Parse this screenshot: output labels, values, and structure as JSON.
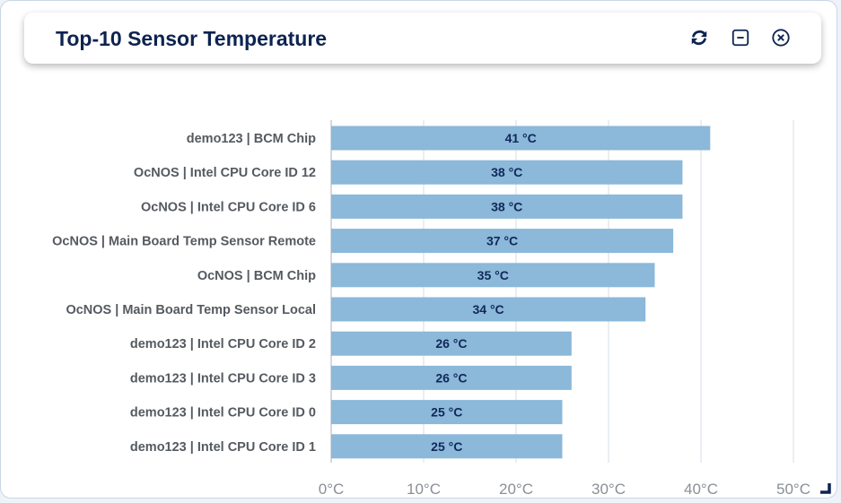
{
  "widget": {
    "title": "Top-10 Sensor Temperature",
    "actions": [
      {
        "name": "refresh",
        "icon": "refresh-icon"
      },
      {
        "name": "minimize",
        "icon": "minimize-icon"
      },
      {
        "name": "close",
        "icon": "close-icon"
      }
    ]
  },
  "colors": {
    "title": "#0d2350",
    "bar": "#8cb8d9",
    "bar_label": "#10285a",
    "grid": "#dde2e8"
  },
  "chart_data": {
    "type": "bar",
    "orientation": "horizontal",
    "categories": [
      "demo123 | BCM Chip",
      "OcNOS | Intel CPU Core ID 12",
      "OcNOS | Intel CPU Core ID 6",
      "OcNOS | Main Board Temp Sensor Remote",
      "OcNOS | BCM Chip",
      "OcNOS | Main Board Temp Sensor Local",
      "demo123 | Intel CPU Core ID 2",
      "demo123 | Intel CPU Core ID 3",
      "demo123 | Intel CPU Core ID 0",
      "demo123 | Intel CPU Core ID 1"
    ],
    "values": [
      41,
      38,
      38,
      37,
      35,
      34,
      26,
      26,
      25,
      25
    ],
    "value_labels": [
      "41 °C",
      "38 °C",
      "38 °C",
      "37 °C",
      "35 °C",
      "34 °C",
      "26 °C",
      "26 °C",
      "25 °C",
      "25 °C"
    ],
    "xlim": [
      0,
      50
    ],
    "xticks": [
      0,
      10,
      20,
      30,
      40,
      50
    ],
    "xtick_labels": [
      "0°C",
      "10°C",
      "20°C",
      "30°C",
      "40°C",
      "50°C"
    ],
    "grid": true,
    "legend": "none"
  }
}
